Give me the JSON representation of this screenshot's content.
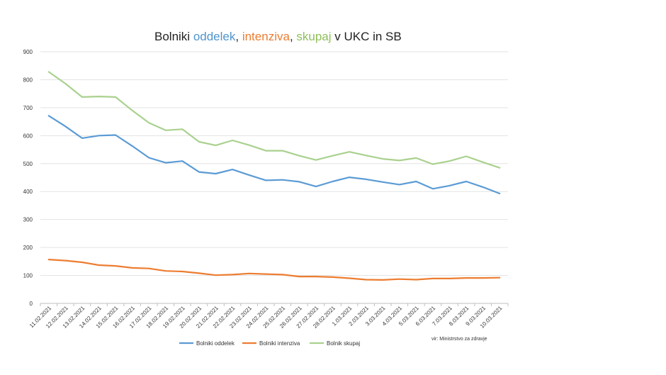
{
  "chart_data": {
    "type": "line",
    "title_parts": [
      {
        "text": "Bolniki ",
        "color": "#222222"
      },
      {
        "text": "oddelek",
        "color": "#4f95cf"
      },
      {
        "text": ", ",
        "color": "#222222"
      },
      {
        "text": "intenziva",
        "color": "#ec7d32"
      },
      {
        "text": ", ",
        "color": "#222222"
      },
      {
        "text": "skupaj",
        "color": "#8fc05a"
      },
      {
        "text": " v UKC  in SB",
        "color": "#222222"
      }
    ],
    "x": [
      "11.02.2021",
      "12.02.2021",
      "13.02.2021",
      "14.02.2021",
      "15.02.2021",
      "16.02.2021",
      "17.02.2021",
      "18.02.2021",
      "19.02.2021",
      "20.02.2021",
      "21.02.2021",
      "22.02.2021",
      "23.02.2021",
      "24.02.2021",
      "25.02.2021",
      "26.02.2021",
      "27.02.2021",
      "28.02.2021",
      "1.03.2021",
      "2.03.2021",
      "3.03.2021",
      "4.03.2021",
      "5.03.2021",
      "6.03.2021",
      "7.03.2021",
      "8.03.2021",
      "9.03.2021",
      "10.03.2021"
    ],
    "yticks": [
      0,
      100,
      200,
      300,
      400,
      500,
      600,
      700,
      800,
      900
    ],
    "ylim": [
      0,
      900
    ],
    "grid": true,
    "legend_position": "bottom",
    "series": [
      {
        "name": "Bolniki oddelek",
        "color": "#5b9bd5",
        "values": [
          671,
          633,
          591,
          600,
          602,
          563,
          521,
          503,
          509,
          470,
          464,
          479,
          459,
          440,
          442,
          435,
          418,
          436,
          451,
          444,
          434,
          425,
          436,
          410,
          421,
          436,
          416,
          393
        ]
      },
      {
        "name": "Bolniki intenziva",
        "color": "#ed7d31",
        "values": [
          157,
          153,
          147,
          137,
          134,
          127,
          125,
          116,
          114,
          108,
          101,
          103,
          107,
          105,
          103,
          96,
          96,
          94,
          90,
          85,
          84,
          87,
          85,
          89,
          89,
          91,
          91,
          92
        ]
      },
      {
        "name": "Bolnik skupaj",
        "color": "#a9d18e",
        "values": [
          828,
          786,
          738,
          740,
          738,
          690,
          646,
          619,
          623,
          578,
          565,
          583,
          566,
          546,
          546,
          528,
          513,
          528,
          542,
          529,
          517,
          511,
          520,
          498,
          509,
          526,
          505,
          485
        ]
      }
    ],
    "source_note": "vir: Ministrstvo za zdravje"
  }
}
